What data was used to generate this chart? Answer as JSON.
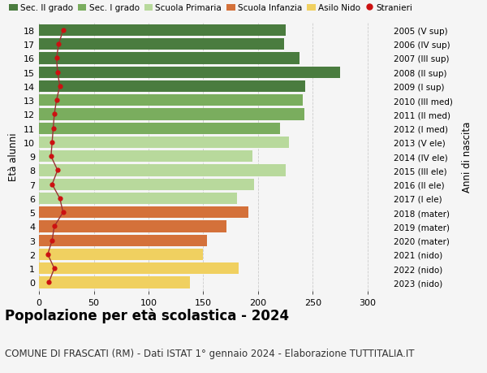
{
  "ages": [
    18,
    17,
    16,
    15,
    14,
    13,
    12,
    11,
    10,
    9,
    8,
    7,
    6,
    5,
    4,
    3,
    2,
    1,
    0
  ],
  "years": [
    "2005 (V sup)",
    "2006 (IV sup)",
    "2007 (III sup)",
    "2008 (II sup)",
    "2009 (I sup)",
    "2010 (III med)",
    "2011 (II med)",
    "2012 (I med)",
    "2013 (V ele)",
    "2014 (IV ele)",
    "2015 (III ele)",
    "2016 (II ele)",
    "2017 (I ele)",
    "2018 (mater)",
    "2019 (mater)",
    "2020 (mater)",
    "2021 (nido)",
    "2022 (nido)",
    "2023 (nido)"
  ],
  "bar_values": [
    225,
    224,
    238,
    275,
    243,
    241,
    242,
    220,
    228,
    195,
    225,
    196,
    181,
    191,
    171,
    153,
    150,
    182,
    138
  ],
  "stranieri": [
    22,
    18,
    16,
    17,
    19,
    16,
    14,
    13,
    12,
    11,
    17,
    12,
    19,
    22,
    14,
    12,
    8,
    14,
    9
  ],
  "bar_colors": [
    "#4a7c3f",
    "#4a7c3f",
    "#4a7c3f",
    "#4a7c3f",
    "#4a7c3f",
    "#7aad5e",
    "#7aad5e",
    "#7aad5e",
    "#b8d99c",
    "#b8d99c",
    "#b8d99c",
    "#b8d99c",
    "#b8d99c",
    "#d4713a",
    "#d4713a",
    "#d4713a",
    "#f0d060",
    "#f0d060",
    "#f0d060"
  ],
  "legend_labels": [
    "Sec. II grado",
    "Sec. I grado",
    "Scuola Primaria",
    "Scuola Infanzia",
    "Asilo Nido",
    "Stranieri"
  ],
  "legend_colors": [
    "#4a7c3f",
    "#7aad5e",
    "#b8d99c",
    "#d4713a",
    "#f0d060",
    "#cc1111"
  ],
  "stranieri_dot_color": "#cc1111",
  "stranieri_line_color": "#993333",
  "ylabel": "Età alunni",
  "right_ylabel": "Anni di nascita",
  "title": "Popolazione per età scolastica - 2024",
  "subtitle": "COMUNE DI FRASCATI (RM) - Dati ISTAT 1° gennaio 2024 - Elaborazione TUTTITALIA.IT",
  "xlim": [
    0,
    320
  ],
  "xticks": [
    0,
    50,
    100,
    150,
    200,
    250,
    300
  ],
  "bg_color": "#f5f5f5",
  "grid_color": "#cccccc",
  "bar_height": 0.82,
  "title_fontsize": 12,
  "subtitle_fontsize": 8.5,
  "axis_label_fontsize": 8.5,
  "tick_fontsize": 8,
  "legend_fontsize": 7.5
}
